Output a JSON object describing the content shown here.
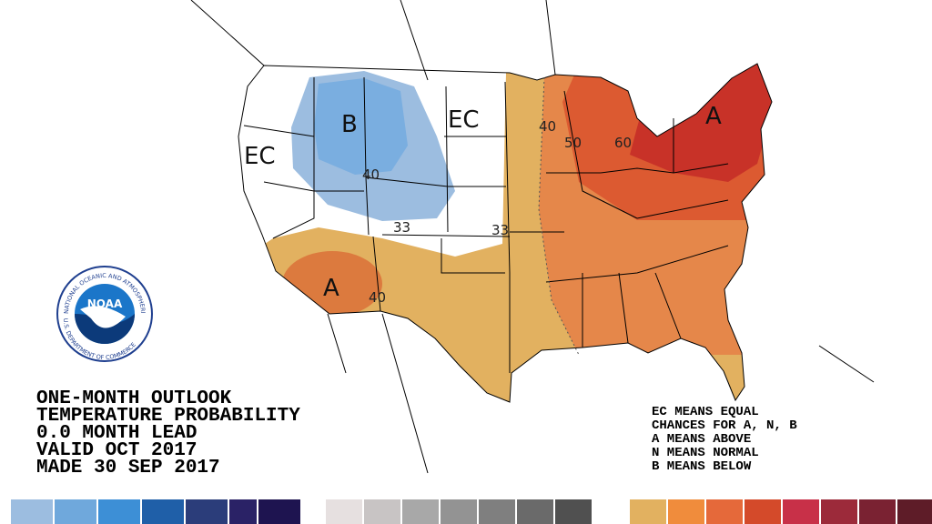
{
  "title_lines": [
    "ONE-MONTH OUTLOOK",
    "TEMPERATURE PROBABILITY",
    "0.0 MONTH LEAD",
    "VALID OCT 2017",
    "MADE 30 SEP 2017"
  ],
  "key_lines": [
    "EC MEANS EQUAL",
    "CHANCES FOR A, N, B",
    "A MEANS ABOVE",
    "N MEANS NORMAL",
    "B MEANS BELOW"
  ],
  "logo": {
    "name": "NOAA",
    "top_text": "NATIONAL OCEANIC AND ATMOSPHERIC ADMINISTRATION",
    "bottom_text": "U.S. DEPARTMENT OF COMMERCE"
  },
  "map_labels": {
    "below": "B",
    "ec_west": "EC",
    "ec_north": "EC",
    "above_east": "A",
    "above_southwest": "A",
    "contours": [
      "40",
      "50",
      "60",
      "40",
      "33",
      "33",
      "40"
    ]
  }
}
